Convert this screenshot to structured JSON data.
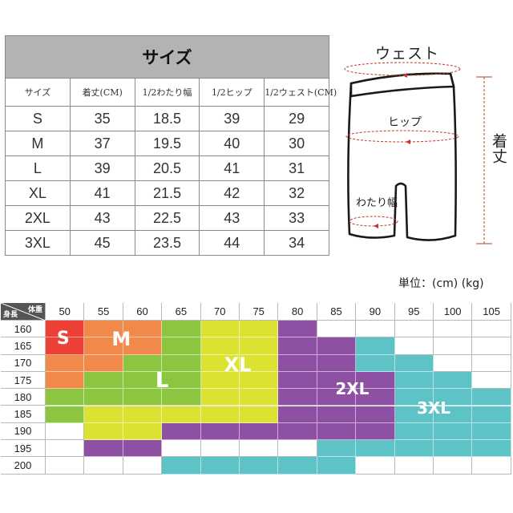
{
  "size_table": {
    "title": "サイズ",
    "columns": [
      "サイズ",
      "着丈(CM)",
      "1/2わたり幅",
      "1/2ヒップ",
      "1/2ウェスト(CM)"
    ],
    "rows": [
      [
        "S",
        "35",
        "18.5",
        "39",
        "29"
      ],
      [
        "M",
        "37",
        "19.5",
        "40",
        "30"
      ],
      [
        "L",
        "39",
        "20.5",
        "41",
        "31"
      ],
      [
        "XL",
        "41",
        "21.5",
        "42",
        "32"
      ],
      [
        "2XL",
        "43",
        "22.5",
        "43",
        "33"
      ],
      [
        "3XL",
        "45",
        "23.5",
        "44",
        "34"
      ]
    ]
  },
  "diagram": {
    "waist": "ウェスト",
    "hip": "ヒップ",
    "thigh": "わたり幅",
    "length": "着丈"
  },
  "unit": "単位：(cm) (kg)",
  "size_chart": {
    "corner_top": "体重",
    "corner_bottom": "身長",
    "weights": [
      "50",
      "55",
      "60",
      "65",
      "70",
      "75",
      "80",
      "85",
      "90",
      "95",
      "100",
      "105"
    ],
    "heights": [
      "160",
      "165",
      "170",
      "175",
      "180",
      "185",
      "190",
      "195",
      "200"
    ],
    "grid": [
      [
        "S",
        "M",
        "M",
        "L",
        "XL",
        "XL",
        "2XL",
        "",
        "",
        "",
        "",
        ""
      ],
      [
        "S",
        "M",
        "M",
        "L",
        "XL",
        "XL",
        "2XL",
        "2XL",
        "3XL",
        "",
        "",
        ""
      ],
      [
        "M",
        "M",
        "L",
        "L",
        "XL",
        "XL",
        "2XL",
        "2XL",
        "3XL",
        "3XL",
        "",
        ""
      ],
      [
        "M",
        "L",
        "L",
        "L",
        "XL",
        "XL",
        "2XL",
        "2XL",
        "2XL",
        "3XL",
        "3XL",
        ""
      ],
      [
        "L",
        "L",
        "L",
        "L",
        "XL",
        "XL",
        "2XL",
        "2XL",
        "2XL",
        "3XL",
        "3XL",
        "3XL"
      ],
      [
        "L",
        "XL",
        "XL",
        "XL",
        "XL",
        "XL",
        "2XL",
        "2XL",
        "2XL",
        "3XL",
        "3XL",
        "3XL"
      ],
      [
        "",
        "XL",
        "XL",
        "2XL",
        "2XL",
        "2XL",
        "2XL",
        "2XL",
        "2XL",
        "3XL",
        "3XL",
        "3XL"
      ],
      [
        "",
        "2XL",
        "2XL",
        "",
        "",
        "",
        "",
        "3XL",
        "3XL",
        "3XL",
        "3XL",
        "3XL"
      ],
      [
        "",
        "",
        "",
        "3XL",
        "3XL",
        "3XL",
        "3XL",
        "3XL",
        "",
        "",
        "",
        ""
      ]
    ],
    "zones": [
      {
        "size": "S",
        "color": "#ee4036"
      },
      {
        "size": "M",
        "color": "#f0894a"
      },
      {
        "size": "L",
        "color": "#8cc640"
      },
      {
        "size": "XL",
        "color": "#dbe232"
      },
      {
        "size": "2XL",
        "color": "#8e50a3"
      },
      {
        "size": "3XL",
        "color": "#5ec3c6"
      }
    ],
    "header_bg": "#555555"
  }
}
